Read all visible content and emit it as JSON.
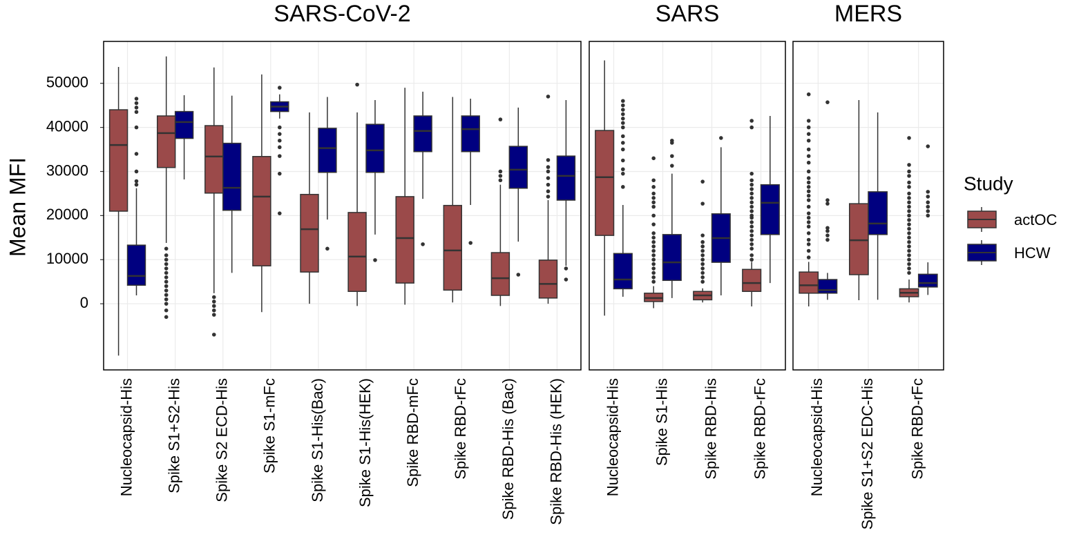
{
  "chart_data": [
    {
      "type": "box",
      "title": "SARS-CoV-2",
      "y_label": "Mean MFI",
      "legend_title": "Study",
      "ylim": [
        -15000,
        59500
      ],
      "yticks": [
        0,
        10000,
        20000,
        30000,
        40000,
        50000
      ],
      "grid": true,
      "categories": [
        "Nucleocapsid-His",
        "Spike S1+S2-His",
        "Spike S2 ECD-His",
        "Spike S1-mFc",
        "Spike S1-His(Bac)",
        "Spike S1-His(HEK)",
        "Spike RBD-mFc",
        "Spike RBD-rFc",
        "Spike RBD-His (Bac)",
        "Spike RBD-His (HEK)"
      ],
      "series": [
        {
          "name": "actOC",
          "color": "#9b4a4a",
          "values": [
            {
              "min": -11750,
              "q1": 21000,
              "median": 36000,
              "q3": 44000,
              "max": 53700,
              "outliers": []
            },
            {
              "min": 13800,
              "q1": 30900,
              "median": 38700,
              "q3": 42600,
              "max": 56100,
              "outliers": [
                12500,
                11000,
                10000,
                9000,
                8000,
                7000,
                6000,
                5000,
                4000,
                3000,
                2000,
                1000,
                0,
                -1500,
                -3000
              ]
            },
            {
              "min": 2400,
              "q1": 25100,
              "median": 33400,
              "q3": 40400,
              "max": 53600,
              "outliers": [
                1500,
                500,
                -500,
                -1500,
                -2500,
                -7000
              ]
            },
            {
              "min": -1900,
              "q1": 8600,
              "median": 24300,
              "q3": 33400,
              "max": 52000,
              "outliers": []
            },
            {
              "min": 0,
              "q1": 7200,
              "median": 16900,
              "q3": 24800,
              "max": 43400,
              "outliers": []
            },
            {
              "min": -500,
              "q1": 2800,
              "median": 10700,
              "q3": 20700,
              "max": 43400,
              "outliers": [
                49700
              ]
            },
            {
              "min": -200,
              "q1": 4700,
              "median": 14900,
              "q3": 24300,
              "max": 49000,
              "outliers": []
            },
            {
              "min": 300,
              "q1": 3100,
              "median": 12100,
              "q3": 22300,
              "max": 46900,
              "outliers": []
            },
            {
              "min": -500,
              "q1": 1900,
              "median": 5800,
              "q3": 11600,
              "max": 27000,
              "outliers": [
                41800,
                30000,
                29000,
                28000
              ]
            },
            {
              "min": 0,
              "q1": 1300,
              "median": 4500,
              "q3": 9900,
              "max": 23500,
              "outliers": [
                47000,
                32600,
                31000,
                30000,
                28500,
                27000,
                25500,
                24300
              ]
            }
          ]
        },
        {
          "name": "HCW",
          "color": "#000080",
          "values": [
            {
              "min": 1900,
              "q1": 4200,
              "median": 6300,
              "q3": 13300,
              "max": 26200,
              "outliers": [
                46500,
                45500,
                44500,
                43500,
                40000,
                34000,
                30000,
                27800,
                27000
              ]
            },
            {
              "min": 28200,
              "q1": 37500,
              "median": 41200,
              "q3": 43600,
              "max": 47300,
              "outliers": []
            },
            {
              "min": 7000,
              "q1": 21200,
              "median": 26300,
              "q3": 36400,
              "max": 47200,
              "outliers": []
            },
            {
              "min": 42000,
              "q1": 43600,
              "median": 44700,
              "q3": 45800,
              "max": 47500,
              "outliers": [
                49000,
                40000,
                38500,
                37000,
                35500,
                33500,
                29500,
                20500
              ]
            },
            {
              "min": 19100,
              "q1": 29800,
              "median": 35300,
              "q3": 39800,
              "max": 46900,
              "outliers": [
                12500
              ]
            },
            {
              "min": 15700,
              "q1": 29800,
              "median": 34800,
              "q3": 40700,
              "max": 46200,
              "outliers": [
                9900
              ]
            },
            {
              "min": 23800,
              "q1": 34500,
              "median": 39200,
              "q3": 42600,
              "max": 48100,
              "outliers": [
                13500
              ]
            },
            {
              "min": 22400,
              "q1": 34500,
              "median": 39600,
              "q3": 42600,
              "max": 46500,
              "outliers": [
                13800
              ]
            },
            {
              "min": 14100,
              "q1": 26200,
              "median": 30400,
              "q3": 35700,
              "max": 44500,
              "outliers": [
                6600
              ]
            },
            {
              "min": 8600,
              "q1": 23500,
              "median": 29000,
              "q3": 33500,
              "max": 46200,
              "outliers": [
                8000,
                5500
              ]
            }
          ]
        }
      ]
    },
    {
      "type": "box",
      "title": "SARS",
      "ylim": [
        -15000,
        59500
      ],
      "yticks": [
        0,
        10000,
        20000,
        30000,
        40000,
        50000
      ],
      "grid": true,
      "categories": [
        "Nucleocapsid-His",
        "Spike S1-His",
        "Spike RBD-His",
        "Spike RBD-rFc"
      ],
      "series": [
        {
          "color": "#9b4a4a",
          "values": [
            {
              "min": -2700,
              "q1": 15500,
              "median": 28700,
              "q3": 39300,
              "max": 55200,
              "outliers": []
            },
            {
              "min": -1000,
              "q1": 500,
              "median": 1300,
              "q3": 2400,
              "max": 4000,
              "outliers": [
                33000,
                28000,
                26500,
                25000,
                24000,
                23000,
                22000,
                20000,
                18000,
                16000,
                15000,
                14000,
                13000,
                12000,
                11000,
                10000,
                9000,
                8000,
                7000,
                6000,
                5000
              ]
            },
            {
              "min": 300,
              "q1": 900,
              "median": 1900,
              "q3": 2800,
              "max": 3500,
              "outliers": [
                27700,
                22700,
                15500,
                14000,
                13000,
                12000,
                11000,
                10000,
                9000,
                8000,
                7000,
                6000,
                5000
              ]
            },
            {
              "min": -600,
              "q1": 2800,
              "median": 4700,
              "q3": 7800,
              "max": 9500,
              "outliers": [
                41500,
                40000,
                29500,
                28000,
                27000,
                26000,
                25000,
                24000,
                23000,
                22000,
                21000,
                20000,
                19500,
                18500,
                17500,
                16500,
                15500,
                14500,
                13500,
                12500,
                11000,
                10000
              ]
            }
          ]
        },
        {
          "color": "#000080",
          "values": [
            {
              "min": 1600,
              "q1": 3400,
              "median": 5500,
              "q3": 11400,
              "max": 22400,
              "outliers": [
                46000,
                45000,
                44000,
                43000,
                42000,
                41000,
                40000,
                38000,
                36500,
                35000,
                32500,
                30500,
                29500,
                26500
              ]
            },
            {
              "min": 1300,
              "q1": 5300,
              "median": 9400,
              "q3": 15700,
              "max": 29500,
              "outliers": [
                37000,
                36500,
                33500,
                31300
              ]
            },
            {
              "min": 1900,
              "q1": 9400,
              "median": 14900,
              "q3": 20400,
              "max": 35500,
              "outliers": [
                37600
              ]
            },
            {
              "min": 4700,
              "q1": 15700,
              "median": 22900,
              "q3": 27000,
              "max": 42600,
              "outliers": []
            }
          ]
        }
      ]
    },
    {
      "type": "box",
      "title": "MERS",
      "ylim": [
        -15000,
        59500
      ],
      "yticks": [
        0,
        10000,
        20000,
        30000,
        40000,
        50000
      ],
      "grid": true,
      "categories": [
        "Nucleocapsid-His",
        "Spike S1+S2 EDC-His",
        "Spike RBD-rFc"
      ],
      "series": [
        {
          "color": "#9b4a4a",
          "values": [
            {
              "min": -600,
              "q1": 2400,
              "median": 4200,
              "q3": 7200,
              "max": 9500,
              "outliers": [
                47500,
                41500,
                40000,
                38500,
                37000,
                35000,
                33500,
                32000,
                30000,
                28500,
                27500,
                26500,
                25500,
                24500,
                23500,
                22000,
                20500,
                19500,
                18500,
                17500,
                16000,
                14500,
                13500,
                12000,
                10500
              ]
            },
            {
              "min": 800,
              "q1": 6600,
              "median": 14400,
              "q3": 22700,
              "max": 46200,
              "outliers": []
            },
            {
              "min": 300,
              "q1": 1600,
              "median": 2500,
              "q3": 3400,
              "max": 5500,
              "outliers": [
                37600,
                31500,
                30000,
                29000,
                27500,
                26500,
                25000,
                24000,
                23000,
                22000,
                21000,
                20000,
                19000,
                18000,
                17000,
                16000,
                15000,
                14000,
                13000,
                12000,
                11000,
                10000,
                9000,
                8000,
                7000
              ]
            }
          ]
        },
        {
          "color": "#000080",
          "values": [
            {
              "min": 900,
              "q1": 2400,
              "median": 3100,
              "q3": 5500,
              "max": 7000,
              "outliers": [
                45700,
                23500,
                22700,
                17200,
                16500,
                15500,
                14500
              ]
            },
            {
              "min": 900,
              "q1": 15700,
              "median": 18200,
              "q3": 25400,
              "max": 43400,
              "outliers": []
            },
            {
              "min": 2000,
              "q1": 3800,
              "median": 4700,
              "q3": 6700,
              "max": 9400,
              "outliers": [
                35700,
                25400,
                24300,
                23000,
                22000,
                21000,
                20000
              ]
            }
          ]
        }
      ]
    }
  ]
}
